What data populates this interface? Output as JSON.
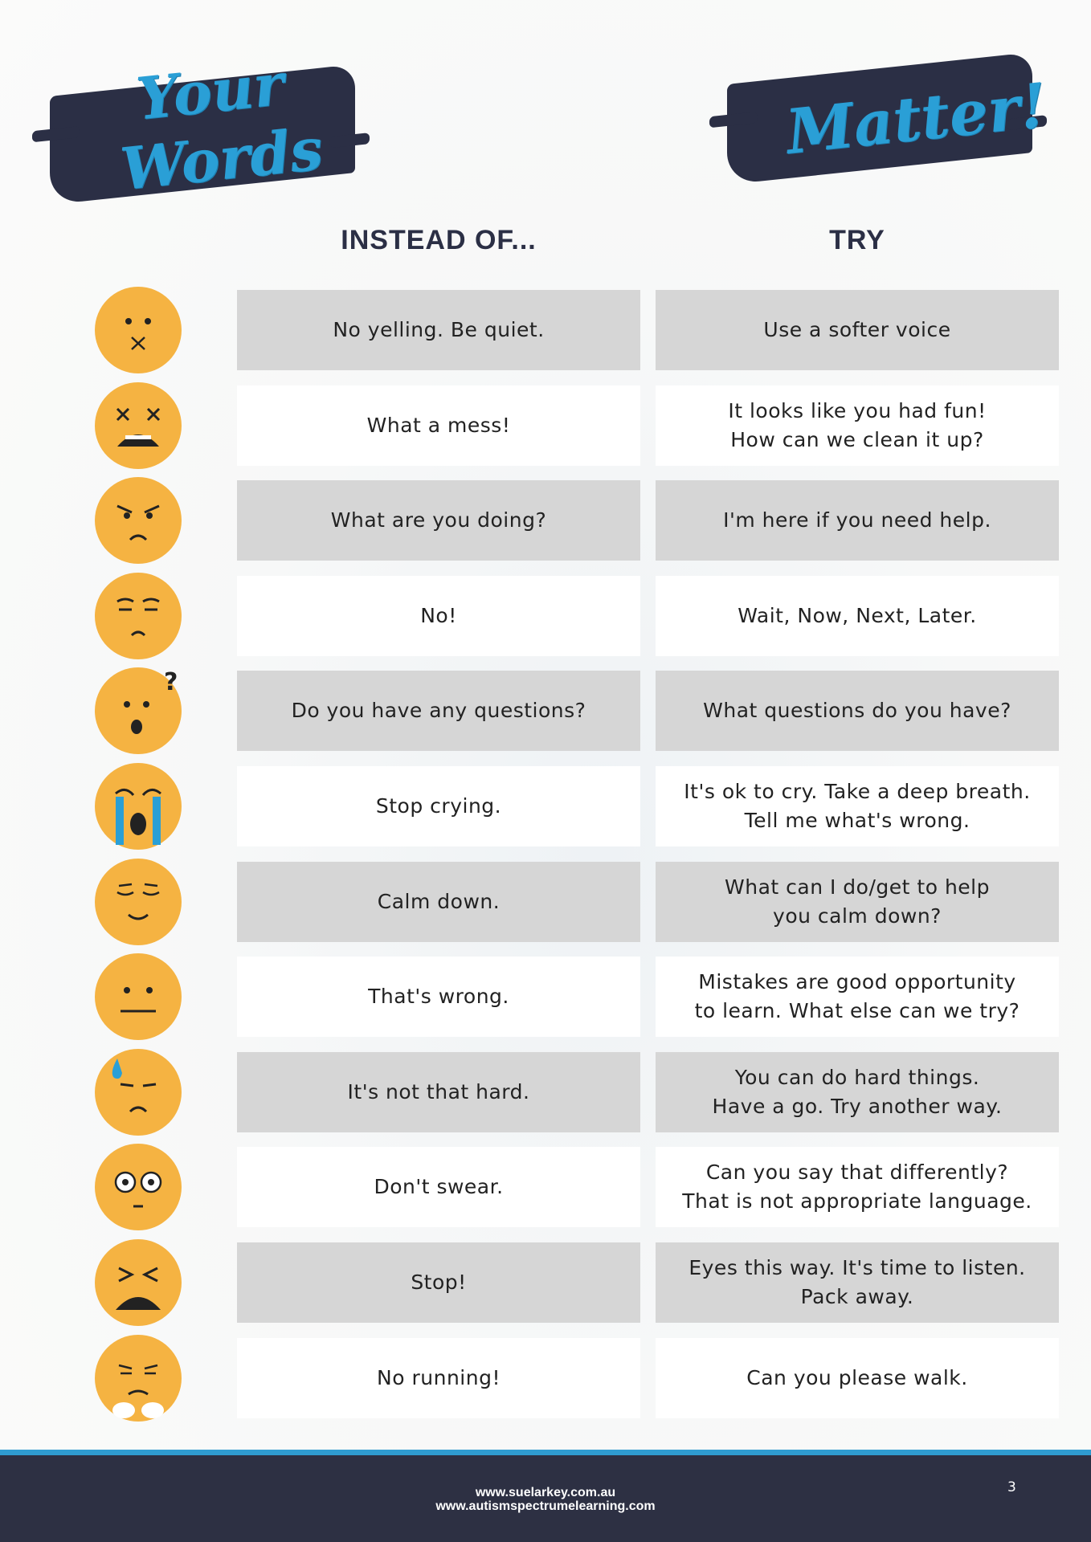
{
  "header": {
    "title_left_line1": "Your",
    "title_left_line2": "Words",
    "title_right": "Matter!"
  },
  "columns": {
    "instead": "INSTEAD OF...",
    "try": "TRY"
  },
  "colors": {
    "navy": "#2b2f45",
    "accent_blue": "#2a9fd6",
    "emoji_yellow": "#f5b342",
    "row_gray": "#d6d6d6"
  },
  "rows": [
    {
      "emoji": "mouth-zipped-x-icon",
      "instead": "No yelling. Be quiet.",
      "try": "Use a softer voice"
    },
    {
      "emoji": "distressed-x-eyes-icon",
      "instead": "What a mess!",
      "try": "It looks like you had fun!\nHow can we clean it up?"
    },
    {
      "emoji": "angry-face-icon",
      "instead": "What are you doing?",
      "try": "I'm here if you need help."
    },
    {
      "emoji": "unamused-face-icon",
      "instead": "No!",
      "try": "Wait, Now, Next, Later."
    },
    {
      "emoji": "confused-question-face-icon",
      "instead": "Do you have any questions?",
      "try": "What questions do you have?"
    },
    {
      "emoji": "crying-face-icon",
      "instead": "Stop crying.",
      "try": "It's ok to cry. Take a deep breath.\nTell me what's wrong."
    },
    {
      "emoji": "relieved-face-icon",
      "instead": "Calm down.",
      "try": "What can I do/get to help\nyou calm down?"
    },
    {
      "emoji": "neutral-face-icon",
      "instead": "That's wrong.",
      "try": "Mistakes are good opportunity\nto learn. What else can we try?"
    },
    {
      "emoji": "sweat-drop-face-icon",
      "instead": "It's not that hard.",
      "try": "You can do hard things.\nHave a go. Try another way."
    },
    {
      "emoji": "wide-eyed-face-icon",
      "instead": "Don't swear.",
      "try": "Can you say that differently?\nThat is not appropriate language."
    },
    {
      "emoji": "squinting-distressed-face-icon",
      "instead": "Stop!",
      "try": "Eyes this way. It's time to listen.\nPack away."
    },
    {
      "emoji": "steam-nose-face-icon",
      "instead": "No running!",
      "try": "Can you please walk."
    }
  ],
  "footer": {
    "url1": "www.suelarkey.com.au",
    "url2": "www.autismspectrumelearning.com",
    "page_number": "3"
  }
}
